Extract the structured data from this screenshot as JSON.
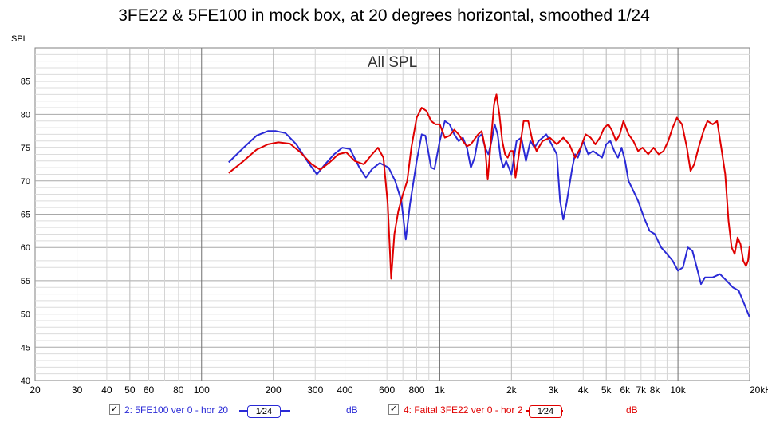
{
  "title": "3FE22 & 5FE100 in mock box, at 20 degrees horizontal, smoothed 1/24",
  "colors": {
    "series1": "#2a2ad6",
    "series2": "#e00000",
    "grid_minor": "#d0d0d0",
    "grid_major": "#707070",
    "plot_bg": "#ffffff"
  },
  "legend": {
    "items": [
      {
        "checked": "✓",
        "label": "2: 5FE100 ver 0 - hor 20",
        "smoothing": "1⁄24",
        "unit": "dB"
      },
      {
        "checked": "✓",
        "label": "4: Faital 3FE22 ver 0 - hor 2",
        "smoothing": "1⁄24",
        "unit": "dB"
      }
    ]
  },
  "chart_data": {
    "type": "line",
    "title": "All SPL",
    "ylabel": "SPL",
    "xscale": "log",
    "xlim": [
      20,
      20000
    ],
    "ylim": [
      40,
      90
    ],
    "grid": true,
    "x_ticks": [
      20,
      30,
      40,
      50,
      60,
      80,
      100,
      200,
      300,
      400,
      600,
      800,
      1000,
      2000,
      3000,
      4000,
      5000,
      6000,
      7000,
      8000,
      10000,
      20000
    ],
    "x_tick_labels": [
      "20",
      "30",
      "40",
      "50",
      "60",
      "80",
      "100",
      "200",
      "300",
      "400",
      "600",
      "800",
      "1k",
      "2k",
      "3k",
      "4k",
      "5k",
      "6k",
      "7k",
      "8k",
      "10k",
      "20kHz"
    ],
    "y_ticks": [
      40,
      45,
      50,
      55,
      60,
      65,
      70,
      75,
      80,
      85
    ],
    "series": [
      {
        "name": "2: 5FE100 ver 0 - hor 20",
        "color": "#2a2ad6",
        "points": [
          [
            130,
            72.8
          ],
          [
            150,
            75.0
          ],
          [
            170,
            76.8
          ],
          [
            190,
            77.5
          ],
          [
            205,
            77.5
          ],
          [
            225,
            77.2
          ],
          [
            250,
            75.5
          ],
          [
            280,
            72.8
          ],
          [
            305,
            71.0
          ],
          [
            330,
            72.5
          ],
          [
            360,
            74.0
          ],
          [
            390,
            75.0
          ],
          [
            420,
            74.8
          ],
          [
            460,
            72.0
          ],
          [
            490,
            70.5
          ],
          [
            520,
            71.8
          ],
          [
            560,
            72.7
          ],
          [
            610,
            72.0
          ],
          [
            650,
            70.0
          ],
          [
            690,
            67.0
          ],
          [
            720,
            61.2
          ],
          [
            750,
            66.5
          ],
          [
            800,
            73.0
          ],
          [
            840,
            77.0
          ],
          [
            870,
            76.8
          ],
          [
            920,
            72.0
          ],
          [
            950,
            71.8
          ],
          [
            1000,
            76.0
          ],
          [
            1050,
            79.0
          ],
          [
            1100,
            78.5
          ],
          [
            1150,
            77.0
          ],
          [
            1200,
            76.0
          ],
          [
            1250,
            76.5
          ],
          [
            1300,
            75.0
          ],
          [
            1350,
            72.0
          ],
          [
            1400,
            73.5
          ],
          [
            1450,
            76.5
          ],
          [
            1500,
            77.0
          ],
          [
            1550,
            75.0
          ],
          [
            1600,
            74.0
          ],
          [
            1650,
            76.0
          ],
          [
            1700,
            78.5
          ],
          [
            1750,
            77.0
          ],
          [
            1800,
            73.5
          ],
          [
            1850,
            72.0
          ],
          [
            1900,
            73.0
          ],
          [
            2000,
            71.0
          ],
          [
            2100,
            76.0
          ],
          [
            2200,
            76.5
          ],
          [
            2300,
            73.0
          ],
          [
            2400,
            76.0
          ],
          [
            2500,
            75.0
          ],
          [
            2600,
            76.0
          ],
          [
            2700,
            76.5
          ],
          [
            2800,
            77.0
          ],
          [
            3000,
            75.0
          ],
          [
            3100,
            74.0
          ],
          [
            3200,
            67.0
          ],
          [
            3300,
            64.2
          ],
          [
            3400,
            66.5
          ],
          [
            3600,
            72.0
          ],
          [
            3700,
            74.0
          ],
          [
            3800,
            73.5
          ],
          [
            4000,
            76.0
          ],
          [
            4200,
            74.0
          ],
          [
            4400,
            74.5
          ],
          [
            4600,
            74.0
          ],
          [
            4800,
            73.5
          ],
          [
            5000,
            75.5
          ],
          [
            5200,
            76.0
          ],
          [
            5400,
            74.5
          ],
          [
            5600,
            73.5
          ],
          [
            5800,
            75.0
          ],
          [
            6000,
            73.0
          ],
          [
            6200,
            70.0
          ],
          [
            6500,
            68.5
          ],
          [
            6800,
            67.0
          ],
          [
            7200,
            64.5
          ],
          [
            7600,
            62.5
          ],
          [
            8000,
            62.0
          ],
          [
            8500,
            60.0
          ],
          [
            9000,
            59.0
          ],
          [
            9500,
            58.0
          ],
          [
            10000,
            56.5
          ],
          [
            10500,
            57.0
          ],
          [
            11000,
            60.0
          ],
          [
            11500,
            59.5
          ],
          [
            12000,
            57.0
          ],
          [
            12500,
            54.5
          ],
          [
            13000,
            55.5
          ],
          [
            14000,
            55.5
          ],
          [
            15000,
            56.0
          ],
          [
            16000,
            55.0
          ],
          [
            17000,
            54.0
          ],
          [
            18000,
            53.5
          ],
          [
            19000,
            51.5
          ],
          [
            20000,
            49.5
          ]
        ]
      },
      {
        "name": "4: Faital 3FE22 ver 0 - hor 2",
        "color": "#e00000",
        "points": [
          [
            130,
            71.2
          ],
          [
            150,
            73.0
          ],
          [
            170,
            74.7
          ],
          [
            190,
            75.5
          ],
          [
            210,
            75.8
          ],
          [
            235,
            75.6
          ],
          [
            260,
            74.3
          ],
          [
            290,
            72.5
          ],
          [
            315,
            71.7
          ],
          [
            345,
            72.8
          ],
          [
            375,
            74.0
          ],
          [
            405,
            74.3
          ],
          [
            440,
            73.0
          ],
          [
            480,
            72.5
          ],
          [
            520,
            74.0
          ],
          [
            550,
            75.0
          ],
          [
            580,
            73.5
          ],
          [
            605,
            66.5
          ],
          [
            625,
            55.3
          ],
          [
            645,
            62.0
          ],
          [
            670,
            65.5
          ],
          [
            700,
            68.0
          ],
          [
            730,
            70.0
          ],
          [
            760,
            75.0
          ],
          [
            800,
            79.5
          ],
          [
            840,
            81.0
          ],
          [
            880,
            80.5
          ],
          [
            920,
            79.0
          ],
          [
            960,
            78.5
          ],
          [
            1000,
            78.5
          ],
          [
            1050,
            76.5
          ],
          [
            1100,
            76.8
          ],
          [
            1150,
            77.7
          ],
          [
            1200,
            77.0
          ],
          [
            1250,
            76.0
          ],
          [
            1300,
            75.2
          ],
          [
            1350,
            75.5
          ],
          [
            1400,
            76.3
          ],
          [
            1450,
            77.0
          ],
          [
            1500,
            77.5
          ],
          [
            1550,
            75.0
          ],
          [
            1590,
            70.2
          ],
          [
            1640,
            76.0
          ],
          [
            1690,
            81.5
          ],
          [
            1730,
            83.0
          ],
          [
            1780,
            80.0
          ],
          [
            1830,
            76.0
          ],
          [
            1880,
            74.0
          ],
          [
            1930,
            73.5
          ],
          [
            1980,
            74.5
          ],
          [
            2030,
            74.5
          ],
          [
            2080,
            70.5
          ],
          [
            2150,
            74.0
          ],
          [
            2250,
            79.0
          ],
          [
            2350,
            79.0
          ],
          [
            2450,
            76.0
          ],
          [
            2550,
            74.5
          ],
          [
            2700,
            76.0
          ],
          [
            2900,
            76.5
          ],
          [
            3100,
            75.5
          ],
          [
            3300,
            76.5
          ],
          [
            3500,
            75.5
          ],
          [
            3700,
            73.5
          ],
          [
            3900,
            75.0
          ],
          [
            4100,
            77.0
          ],
          [
            4300,
            76.5
          ],
          [
            4500,
            75.5
          ],
          [
            4700,
            76.5
          ],
          [
            4900,
            78.0
          ],
          [
            5100,
            78.5
          ],
          [
            5300,
            77.5
          ],
          [
            5500,
            76.0
          ],
          [
            5700,
            77.0
          ],
          [
            5900,
            79.0
          ],
          [
            6200,
            77.0
          ],
          [
            6500,
            76.0
          ],
          [
            6800,
            74.5
          ],
          [
            7100,
            75.0
          ],
          [
            7500,
            74.0
          ],
          [
            7900,
            75.0
          ],
          [
            8300,
            74.0
          ],
          [
            8700,
            74.5
          ],
          [
            9100,
            76.0
          ],
          [
            9500,
            78.0
          ],
          [
            9900,
            79.5
          ],
          [
            10400,
            78.5
          ],
          [
            10900,
            75.0
          ],
          [
            11300,
            71.5
          ],
          [
            11700,
            72.5
          ],
          [
            12200,
            75.0
          ],
          [
            12800,
            77.5
          ],
          [
            13300,
            79.0
          ],
          [
            14000,
            78.5
          ],
          [
            14600,
            79.0
          ],
          [
            15200,
            75.0
          ],
          [
            15800,
            71.0
          ],
          [
            16300,
            64.0
          ],
          [
            16800,
            60.0
          ],
          [
            17300,
            59.0
          ],
          [
            17800,
            61.5
          ],
          [
            18300,
            60.5
          ],
          [
            18800,
            58.0
          ],
          [
            19300,
            57.2
          ],
          [
            19700,
            58.0
          ],
          [
            20000,
            60.2
          ]
        ]
      }
    ]
  }
}
